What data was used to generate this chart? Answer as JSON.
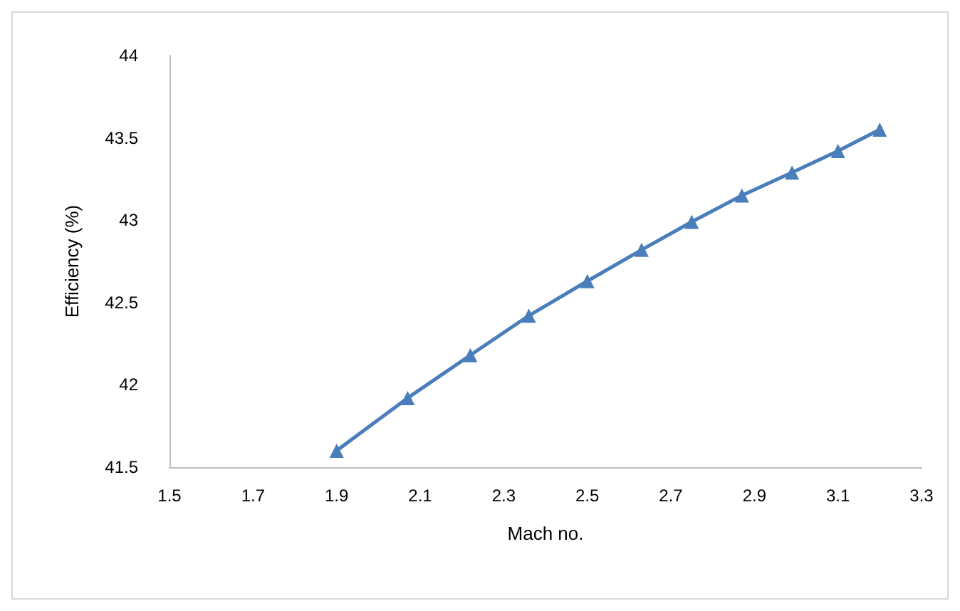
{
  "chart_data": {
    "type": "line",
    "xlabel": "Mach no.",
    "ylabel": "Efficiency (%)",
    "series": [
      {
        "color": "#4a7ebb",
        "x": [
          1.9,
          2.07,
          2.22,
          2.36,
          2.5,
          2.63,
          2.75,
          2.87,
          2.99,
          3.1,
          3.2
        ],
        "values": [
          41.6,
          41.92,
          42.18,
          42.42,
          42.63,
          42.82,
          42.99,
          43.15,
          43.29,
          43.42,
          43.55
        ]
      }
    ],
    "xlim": [
      1.5,
      3.3
    ],
    "xticks": [
      1.5,
      1.7,
      1.9,
      2.1,
      2.3,
      2.5,
      2.7,
      2.9,
      3.1,
      3.3
    ],
    "ylim": [
      41.5,
      44
    ],
    "yticks": [
      41.5,
      42,
      42.5,
      43,
      43.5,
      44
    ],
    "grid": false,
    "marker": "triangle",
    "line_style": "solid"
  }
}
